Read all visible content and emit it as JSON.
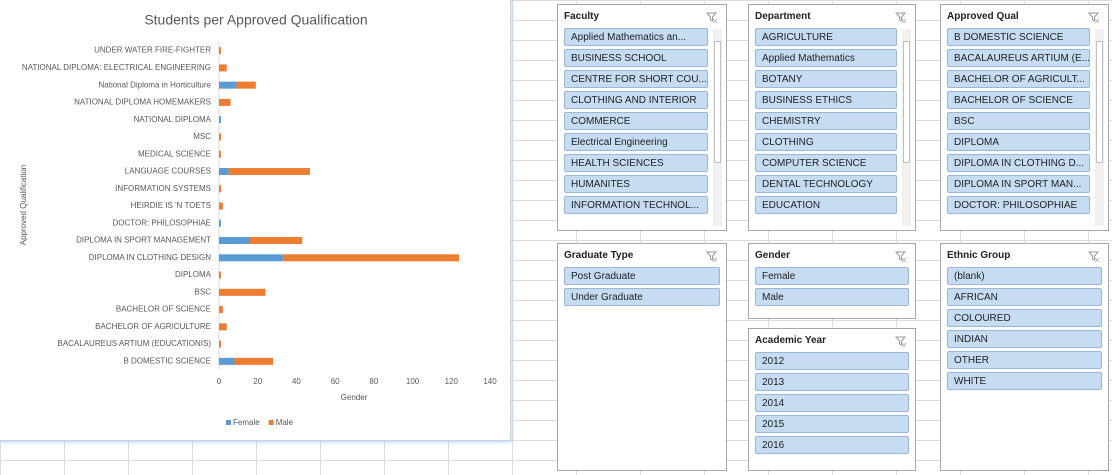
{
  "chart_data": {
    "type": "bar",
    "orientation": "horizontal",
    "stacked": true,
    "title": "Students per Approved Qualification",
    "x_label": "Gender",
    "y_label": "Approved Qualification",
    "categories": [
      "UNDER WATER FIRE-FIGHTER",
      "NATIONAL DIPLOMA:  ELECTRICAL ENGINEERING",
      "National Diploma in Horticulture",
      "NATIONAL DIPLOMA HOMEMAKERS",
      "NATIONAL DIPLOMA",
      "MSC",
      "MEDICAL SCIENCE",
      "LANGUAGE COURSES",
      "INFORMATION SYSTEMS",
      "HEIRDIE IS 'N TOETS",
      "DOCTOR:  PHILOSOPHIAE",
      "DIPLOMA IN SPORT MANAGEMENT",
      "DIPLOMA IN CLOTHING DESIGN",
      "DIPLOMA",
      "BSC",
      "BACHELOR OF SCIENCE",
      "BACHELOR OF AGRICULTURE",
      "BACALAUREUS ARTIUM (EDUCATIONIS)",
      "B DOMESTIC SCIENCE"
    ],
    "series": [
      {
        "name": "Female",
        "color": "#5b9bd5",
        "values": [
          0,
          0,
          9,
          0,
          1,
          0,
          0,
          5,
          0,
          0,
          1,
          16,
          33,
          0,
          0,
          0,
          0,
          0,
          8
        ]
      },
      {
        "name": "Male",
        "color": "#ed7d31",
        "values": [
          1,
          4,
          10,
          6,
          0,
          1,
          1,
          42,
          1,
          2,
          0,
          27,
          91,
          1,
          24,
          2,
          4,
          1,
          20
        ]
      }
    ],
    "xlim": [
      0,
      140
    ],
    "xticks": [
      0,
      20,
      40,
      60,
      80,
      100,
      120,
      140
    ],
    "grid": false,
    "legend": "bottom"
  },
  "slicers": [
    {
      "title": "Faculty",
      "items": [
        "Applied Mathematics an...",
        "BUSINESS SCHOOL",
        "CENTRE FOR SHORT COU...",
        "CLOTHING AND INTERIOR",
        "COMMERCE",
        "Electrical Engineering",
        "HEALTH SCIENCES",
        "HUMANITES",
        "INFORMATION TECHNOL..."
      ]
    },
    {
      "title": "Department",
      "items": [
        "AGRICULTURE",
        "Applied Mathematics",
        "BOTANY",
        "BUSINESS ETHICS",
        "CHEMISTRY",
        "CLOTHING",
        "COMPUTER SCIENCE",
        "DENTAL TECHNOLOGY",
        "EDUCATION"
      ]
    },
    {
      "title": "Approved Qual",
      "items": [
        "B DOMESTIC SCIENCE",
        "BACALAUREUS ARTIUM (E...",
        "BACHELOR OF AGRICULT...",
        "BACHELOR OF SCIENCE",
        "BSC",
        "DIPLOMA",
        "DIPLOMA IN CLOTHING D...",
        "DIPLOMA IN SPORT MAN...",
        "DOCTOR:  PHILOSOPHIAE"
      ]
    },
    {
      "title": "Graduate Type",
      "items": [
        "Post Graduate",
        "Under Graduate"
      ]
    },
    {
      "title": "Gender",
      "items": [
        "Female",
        "Male"
      ]
    },
    {
      "title": "Academic Year",
      "items": [
        "2012",
        "2013",
        "2014",
        "2015",
        "2016"
      ]
    },
    {
      "title": "Ethnic Group",
      "items": [
        "(blank)",
        "AFRICAN",
        "COLOURED",
        "INDIAN",
        "OTHER",
        "WHITE"
      ]
    }
  ]
}
